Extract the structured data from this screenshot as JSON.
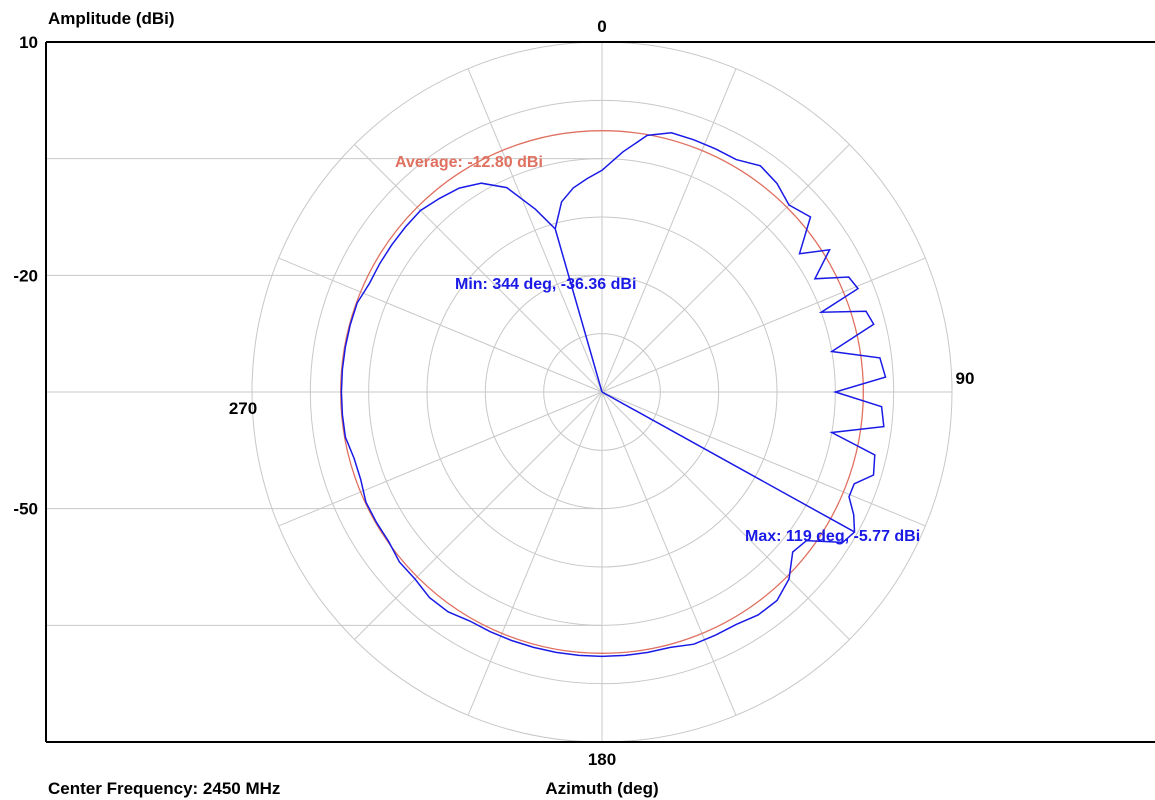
{
  "chart_data": {
    "type": "polar",
    "ylabel": "Amplitude (dBi)",
    "xlabel": "Azimuth (deg)",
    "footer": "Center Frequency: 2450 MHz",
    "rlim": [
      -80,
      10
    ],
    "r_ticks": [
      10,
      -20,
      -50
    ],
    "angle_labels": [
      {
        "deg": 0,
        "text": "0"
      },
      {
        "deg": 90,
        "text": "90"
      },
      {
        "deg": 180,
        "text": "180"
      },
      {
        "deg": 270,
        "text": "270"
      }
    ],
    "grid": true,
    "average": {
      "value": -12.8,
      "label": "Average: -12.80 dBi",
      "color": "#e07060"
    },
    "min_marker": {
      "deg": 344,
      "value": -36.36,
      "label": "Min: 344 deg, -36.36 dBi"
    },
    "max_marker": {
      "deg": 119,
      "value": -5.77,
      "label": "Max: 119 deg, -5.77 dBi"
    },
    "series": [
      {
        "color": "#1a1ae6",
        "points": [
          [
            0,
            -23
          ],
          [
            5,
            -18
          ],
          [
            10,
            -13
          ],
          [
            15,
            -11
          ],
          [
            20,
            -11
          ],
          [
            25,
            -11
          ],
          [
            30,
            -11
          ],
          [
            35,
            -9
          ],
          [
            40,
            -10
          ],
          [
            45,
            -12
          ],
          [
            50,
            -10
          ],
          [
            55,
            -18
          ],
          [
            58,
            -11
          ],
          [
            62,
            -18
          ],
          [
            65,
            -10
          ],
          [
            68,
            -9
          ],
          [
            70,
            -20
          ],
          [
            73,
            -9
          ],
          [
            76,
            -8
          ],
          [
            80,
            -20
          ],
          [
            83,
            -8
          ],
          [
            87,
            -7
          ],
          [
            90,
            -20
          ],
          [
            93,
            -8
          ],
          [
            97,
            -7
          ],
          [
            100,
            -20
          ],
          [
            103,
            -8
          ],
          [
            107,
            -7
          ],
          [
            110,
            -11
          ],
          [
            113,
            -11
          ],
          [
            116,
            -8
          ],
          [
            119,
            -5.77
          ],
          [
            122,
            -7
          ],
          [
            126,
            -15
          ],
          [
            130,
            -16
          ],
          [
            135,
            -12
          ],
          [
            140,
            -10
          ],
          [
            145,
            -10
          ],
          [
            150,
            -11
          ],
          [
            155,
            -11
          ],
          [
            160,
            -11
          ],
          [
            165,
            -12
          ],
          [
            170,
            -12
          ],
          [
            175,
            -12
          ],
          [
            180,
            -12
          ],
          [
            185,
            -12
          ],
          [
            190,
            -12
          ],
          [
            195,
            -12
          ],
          [
            200,
            -12
          ],
          [
            205,
            -12
          ],
          [
            210,
            -12
          ],
          [
            215,
            -11
          ],
          [
            220,
            -11
          ],
          [
            225,
            -12
          ],
          [
            230,
            -12
          ],
          [
            235,
            -13
          ],
          [
            240,
            -13
          ],
          [
            245,
            -13
          ],
          [
            250,
            -14
          ],
          [
            255,
            -14
          ],
          [
            260,
            -13
          ],
          [
            265,
            -13
          ],
          [
            270,
            -13
          ],
          [
            275,
            -13
          ],
          [
            280,
            -13
          ],
          [
            285,
            -13
          ],
          [
            290,
            -13
          ],
          [
            295,
            -14
          ],
          [
            300,
            -14
          ],
          [
            305,
            -14
          ],
          [
            310,
            -14
          ],
          [
            315,
            -14
          ],
          [
            320,
            -15
          ],
          [
            325,
            -16
          ],
          [
            330,
            -18
          ],
          [
            335,
            -22
          ],
          [
            340,
            -30
          ],
          [
            344,
            -36.36
          ],
          [
            348,
            -30
          ],
          [
            352,
            -27
          ],
          [
            356,
            -25
          ],
          [
            360,
            -23
          ]
        ]
      }
    ]
  }
}
